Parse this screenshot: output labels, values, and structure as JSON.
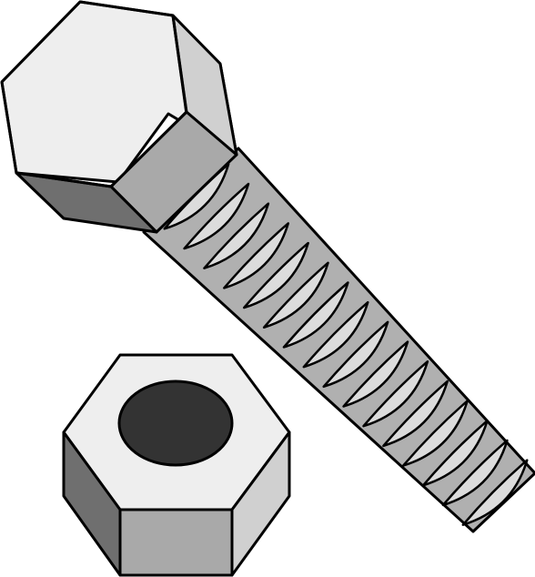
{
  "illustration": {
    "subject_icons": [
      "hex-bolt-icon",
      "hex-nut-icon"
    ],
    "thread_count": 16,
    "colors": {
      "background": "#ffffff",
      "outline": "#000000",
      "face_light": "#eeeeee",
      "face_mid": "#d0d0d0",
      "face_dark": "#a9a9a9",
      "face_darkest": "#6f6f6f",
      "thread_light": "#dcdcdc",
      "thread_shadow": "#b0b0b0",
      "nut_hole": "#333333"
    }
  }
}
